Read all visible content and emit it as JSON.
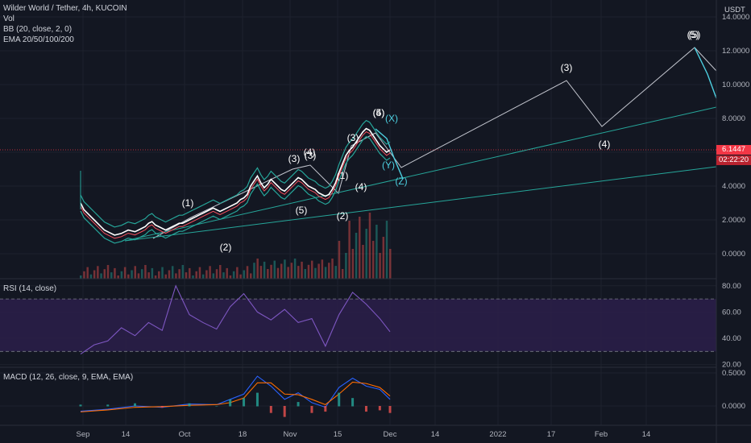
{
  "header": {
    "title": "Wilder World / Tether, 4h, KUCOIN",
    "indicators": [
      "Vol",
      "BB (20, close, 2, 0)",
      "EMA 20/50/100/200"
    ],
    "currency": "USDT"
  },
  "price_tag": {
    "price": "6.1447",
    "countdown": "02:22:20"
  },
  "rsi_pane": {
    "label": "RSI (14, close)",
    "upper": 70,
    "lower": 30
  },
  "macd_pane": {
    "label": "MACD (12, 26, close, 9, EMA, EMA)"
  },
  "colors": {
    "background": "#131722",
    "rsi_fill": "#2b1f4a",
    "rsi_line": "#7e57c2",
    "macd_line": "#2962ff",
    "signal_line": "#ff6d00",
    "bull": "#26a69a",
    "bear": "#ef5350",
    "projection": "#e0e3eb",
    "channel": "#26a69a",
    "wave_alt": "#4dd0e1",
    "price_tag": "#f23645"
  },
  "chart_data": [
    {
      "type": "line",
      "name": "price",
      "title": "Wilder World / Tether, 4h, KUCOIN",
      "xlabel": "",
      "ylabel": "USDT",
      "x_ticks": [
        "Sep",
        "14",
        "Oct",
        "18",
        "Nov",
        "15",
        "Dec",
        "14",
        "2022",
        "17",
        "Feb",
        "14"
      ],
      "y_ticks": [
        "0.0000",
        "2.0000",
        "4.0000",
        "6.0000",
        "8.0000",
        "10.0000",
        "12.0000",
        "14.0000"
      ],
      "ylim": [
        -1.5,
        14.8
      ],
      "grid": true,
      "series": [
        {
          "x": [
            0,
            1,
            2,
            3,
            4,
            5,
            6,
            7,
            8,
            9,
            10,
            11,
            12,
            13,
            14,
            15,
            16,
            17,
            18,
            19,
            20,
            21,
            22,
            23,
            24,
            25,
            26,
            27,
            28,
            29,
            30,
            31,
            32,
            33,
            34,
            35,
            36,
            37,
            38,
            39,
            40,
            41,
            42,
            43,
            44,
            45,
            46,
            47,
            48,
            49,
            50,
            51,
            52,
            53,
            54,
            55,
            56,
            57,
            58,
            59,
            60,
            61,
            62,
            63,
            64,
            65,
            66,
            67,
            68,
            69,
            70,
            71,
            72,
            73,
            74,
            75,
            76,
            77,
            78,
            79,
            80,
            81,
            82,
            83,
            84,
            85,
            86,
            87,
            88,
            89,
            90,
            91
          ],
          "values": [
            3.0,
            2.6,
            2.4,
            2.2,
            2.0,
            1.8,
            1.6,
            1.4,
            1.3,
            1.2,
            1.1,
            1.15,
            1.2,
            1.3,
            1.4,
            1.35,
            1.3,
            1.4,
            1.5,
            1.6,
            1.8,
            1.9,
            1.7,
            1.6,
            1.5,
            1.4,
            1.5,
            1.6,
            1.7,
            1.8,
            1.8,
            1.9,
            2.0,
            2.1,
            2.2,
            2.3,
            2.4,
            2.5,
            2.6,
            2.7,
            2.6,
            2.5,
            2.6,
            2.7,
            2.8,
            2.9,
            3.0,
            3.2,
            3.3,
            3.5,
            4.0,
            4.3,
            4.6,
            4.2,
            3.9,
            4.1,
            4.4,
            4.2,
            4.0,
            3.8,
            3.7,
            3.9,
            4.1,
            4.3,
            4.5,
            4.4,
            4.2,
            4.0,
            3.9,
            3.8,
            3.6,
            3.5,
            3.4,
            3.5,
            3.8,
            4.2,
            4.8,
            5.3,
            5.8,
            6.1,
            6.3,
            6.6,
            6.9,
            7.2,
            7.4,
            7.3,
            7.0,
            6.7,
            6.4,
            6.2,
            6.0,
            6.14
          ]
        }
      ]
    },
    {
      "type": "line",
      "name": "RSI",
      "title": "RSI (14, close)",
      "y_ticks": [
        "20.00",
        "40.00",
        "60.00",
        "80.00"
      ],
      "ylim": [
        18,
        88
      ],
      "series": [
        {
          "x": [
            0,
            4,
            8,
            12,
            16,
            20,
            24,
            28,
            32,
            36,
            40,
            44,
            48,
            52,
            56,
            60,
            64,
            68,
            72,
            76,
            80,
            84,
            88,
            91
          ],
          "values": [
            28,
            35,
            38,
            48,
            42,
            52,
            46,
            80,
            58,
            52,
            47,
            64,
            74,
            60,
            54,
            62,
            52,
            55,
            34,
            58,
            75,
            66,
            55,
            45
          ]
        }
      ]
    },
    {
      "type": "line",
      "name": "MACD",
      "title": "MACD (12, 26, close, 9, EMA, EMA)",
      "y_ticks": [
        "0.0000",
        "0.5000"
      ],
      "ylim": [
        -0.2,
        0.55
      ],
      "series": [
        {
          "name": "MACD",
          "x": [
            0,
            8,
            16,
            24,
            32,
            40,
            44,
            48,
            52,
            56,
            60,
            64,
            68,
            72,
            76,
            80,
            84,
            88,
            91
          ],
          "values": [
            -0.08,
            -0.05,
            0.0,
            -0.02,
            0.03,
            0.02,
            0.1,
            0.18,
            0.45,
            0.3,
            0.1,
            0.2,
            0.05,
            -0.02,
            0.28,
            0.42,
            0.3,
            0.25,
            0.1
          ]
        },
        {
          "name": "Signal",
          "x": [
            0,
            8,
            16,
            24,
            32,
            40,
            44,
            48,
            52,
            56,
            60,
            64,
            68,
            72,
            76,
            80,
            84,
            88,
            91
          ],
          "values": [
            -0.09,
            -0.06,
            -0.02,
            -0.01,
            0.01,
            0.02,
            0.05,
            0.12,
            0.35,
            0.35,
            0.18,
            0.17,
            0.1,
            0.02,
            0.18,
            0.36,
            0.34,
            0.28,
            0.15
          ]
        }
      ]
    }
  ],
  "wave_labels": {
    "white": [
      "(1)",
      "(2)",
      "(3)",
      "(4)",
      "(5)",
      "(3)",
      "(4)",
      "(5)",
      "(1)",
      "(2)",
      "(3)",
      "(4)",
      "(5)",
      "(3)",
      "(4)",
      "(5)"
    ],
    "cyan": [
      "(X)",
      "(Y)",
      "(Z)"
    ]
  }
}
